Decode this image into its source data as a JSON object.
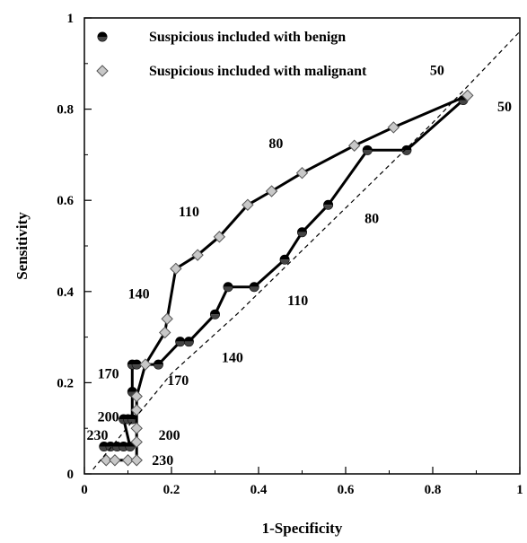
{
  "chart_data": {
    "type": "line",
    "title": "",
    "xlabel": "1-Specificity",
    "ylabel": "Sensitivity",
    "xlim": [
      0,
      1
    ],
    "ylim": [
      0,
      1
    ],
    "xticks": [
      "0",
      "0.2",
      "0.4",
      "0.6",
      "0.8",
      "1"
    ],
    "yticks": [
      "0",
      "0.2",
      "0.4",
      "0.6",
      "0.8",
      "1"
    ],
    "legend_position": "top-left",
    "grid": false,
    "series": [
      {
        "name": "Suspicious  included with benign",
        "marker": "half-filled-circle",
        "x": [
          0.045,
          0.06,
          0.075,
          0.09,
          0.105,
          0.09,
          0.1,
          0.11,
          0.11,
          0.11,
          0.12,
          0.17,
          0.22,
          0.24,
          0.3,
          0.33,
          0.39,
          0.46,
          0.5,
          0.56,
          0.65,
          0.74,
          0.87
        ],
        "y": [
          0.06,
          0.06,
          0.06,
          0.06,
          0.06,
          0.12,
          0.12,
          0.12,
          0.18,
          0.24,
          0.24,
          0.24,
          0.29,
          0.29,
          0.35,
          0.41,
          0.41,
          0.47,
          0.53,
          0.59,
          0.71,
          0.71,
          0.82
        ]
      },
      {
        "name": "Suspicious  included with malignant",
        "marker": "diamond",
        "x": [
          0.05,
          0.07,
          0.1,
          0.12,
          0.12,
          0.12,
          0.12,
          0.12,
          0.14,
          0.185,
          0.19,
          0.21,
          0.26,
          0.31,
          0.375,
          0.43,
          0.5,
          0.62,
          0.71,
          0.88
        ],
        "y": [
          0.03,
          0.03,
          0.03,
          0.03,
          0.07,
          0.1,
          0.14,
          0.17,
          0.24,
          0.31,
          0.34,
          0.45,
          0.48,
          0.52,
          0.59,
          0.62,
          0.66,
          0.72,
          0.76,
          0.83
        ]
      },
      {
        "name": "",
        "style": "dashed",
        "x": [
          0.02,
          0.2,
          0.35,
          0.5,
          0.65,
          0.8,
          1.0
        ],
        "y": [
          0.01,
          0.22,
          0.35,
          0.49,
          0.63,
          0.77,
          0.97
        ]
      }
    ],
    "annotations": [
      {
        "text": "50",
        "x": 0.81,
        "y": 0.875
      },
      {
        "text": "50",
        "x": 0.965,
        "y": 0.795
      },
      {
        "text": "80",
        "x": 0.44,
        "y": 0.715
      },
      {
        "text": "80",
        "x": 0.66,
        "y": 0.55
      },
      {
        "text": "110",
        "x": 0.24,
        "y": 0.565
      },
      {
        "text": "110",
        "x": 0.49,
        "y": 0.37
      },
      {
        "text": "140",
        "x": 0.125,
        "y": 0.385
      },
      {
        "text": "140",
        "x": 0.34,
        "y": 0.245
      },
      {
        "text": "170",
        "x": 0.055,
        "y": 0.21
      },
      {
        "text": "170",
        "x": 0.215,
        "y": 0.195
      },
      {
        "text": "200",
        "x": 0.055,
        "y": 0.115
      },
      {
        "text": "200",
        "x": 0.195,
        "y": 0.075
      },
      {
        "text": "230",
        "x": 0.03,
        "y": 0.075
      },
      {
        "text": "230",
        "x": 0.18,
        "y": 0.02
      }
    ]
  }
}
